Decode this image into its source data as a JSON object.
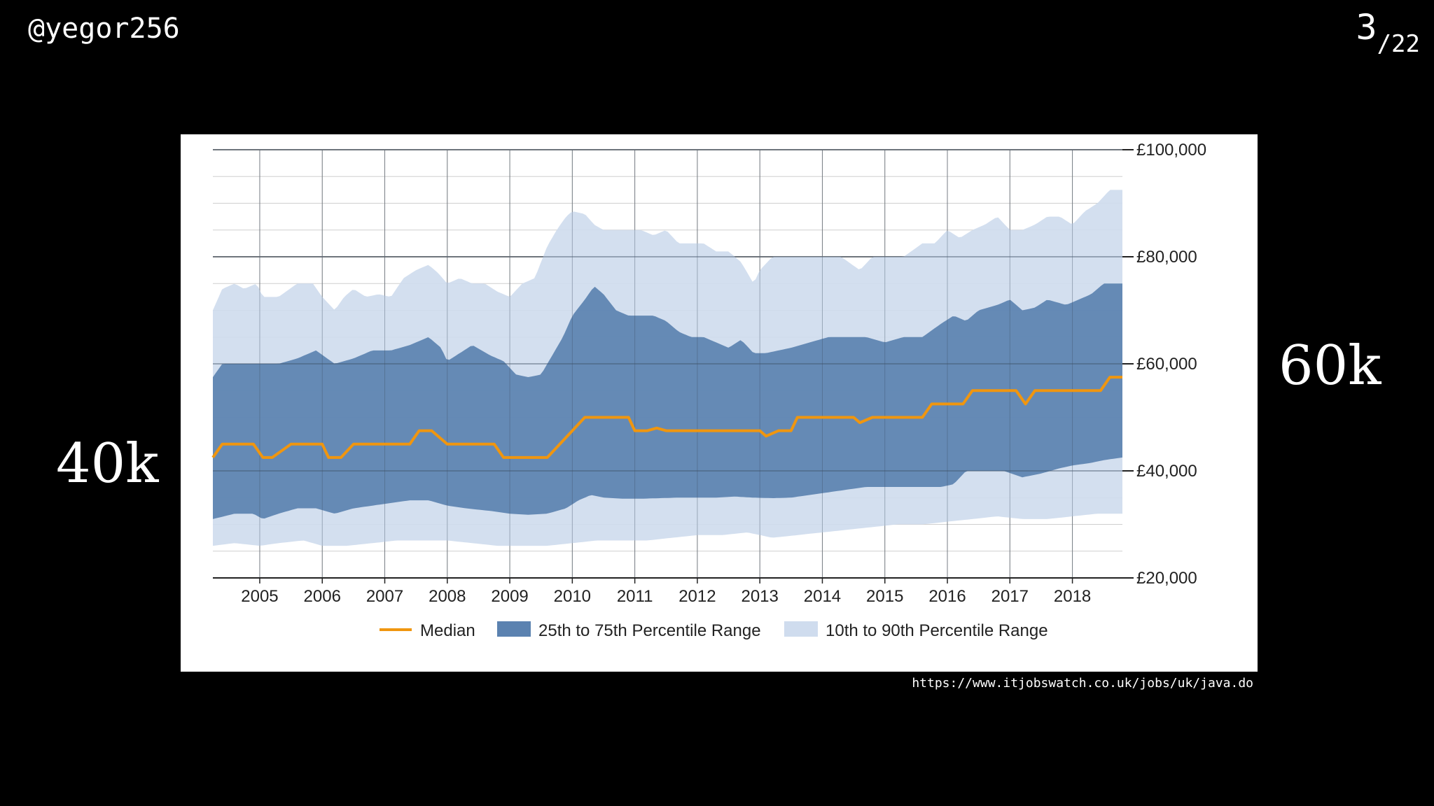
{
  "slide": {
    "handle": "@yegor256",
    "page_current": "3",
    "page_total": "/22",
    "left_label": "40k",
    "right_label": "60k",
    "source_url": "https://www.itjobswatch.co.uk/jobs/uk/java.do"
  },
  "chart_data": {
    "type": "area",
    "title": "",
    "xlabel": "",
    "ylabel": "",
    "xlim": [
      2004.25,
      2018.8
    ],
    "ylim": [
      20000,
      100000
    ],
    "x_tick_labels": [
      "2005",
      "2006",
      "2007",
      "2008",
      "2009",
      "2010",
      "2011",
      "2012",
      "2013",
      "2014",
      "2015",
      "2016",
      "2017",
      "2018"
    ],
    "y_ticks": [
      20000,
      40000,
      60000,
      80000,
      100000
    ],
    "y_tick_labels": [
      "£20,000",
      "£40,000",
      "£60,000",
      "£80,000",
      "£100,000"
    ],
    "y_axis_position": "right",
    "grid": true,
    "legend_position": "bottom",
    "colors": {
      "median": "#f0960f",
      "p25_75": "#5b82b0",
      "p10_90": "#cfdcee"
    },
    "legend": [
      "Median",
      "25th to 75th Percentile Range",
      "10th to 90th Percentile Range"
    ],
    "series": [
      {
        "name": "Median",
        "x": [
          2004.25,
          2004.4,
          2004.7,
          2004.9,
          2005.05,
          2005.2,
          2005.5,
          2005.8,
          2006.0,
          2006.1,
          2006.3,
          2006.5,
          2006.8,
          2007.1,
          2007.4,
          2007.55,
          2007.75,
          2008.0,
          2008.3,
          2008.6,
          2008.75,
          2008.9,
          2009.2,
          2009.4,
          2009.6,
          2009.8,
          2010.0,
          2010.2,
          2010.5,
          2010.9,
          2011.0,
          2011.2,
          2011.35,
          2011.5,
          2011.8,
          2012.1,
          2012.4,
          2012.7,
          2013.0,
          2013.1,
          2013.3,
          2013.5,
          2013.6,
          2013.9,
          2014.2,
          2014.5,
          2014.6,
          2014.8,
          2015.1,
          2015.4,
          2015.6,
          2015.75,
          2016.0,
          2016.25,
          2016.4,
          2016.7,
          2017.0,
          2017.1,
          2017.25,
          2017.4,
          2017.7,
          2018.0,
          2018.3,
          2018.45,
          2018.6,
          2018.8
        ],
        "values": [
          42500,
          45000,
          45000,
          45000,
          42500,
          42500,
          45000,
          45000,
          45000,
          42500,
          42500,
          45000,
          45000,
          45000,
          45000,
          47500,
          47500,
          45000,
          45000,
          45000,
          45000,
          42500,
          42500,
          42500,
          42500,
          45000,
          47500,
          50000,
          50000,
          50000,
          47500,
          47500,
          48000,
          47500,
          47500,
          47500,
          47500,
          47500,
          47500,
          46500,
          47500,
          47500,
          50000,
          50000,
          50000,
          50000,
          49000,
          50000,
          50000,
          50000,
          50000,
          52500,
          52500,
          52500,
          55000,
          55000,
          55000,
          55000,
          52500,
          55000,
          55000,
          55000,
          55000,
          55000,
          57500,
          57500
        ]
      },
      {
        "name": "25th Percentile",
        "x": [
          2004.25,
          2004.6,
          2004.9,
          2005.05,
          2005.3,
          2005.6,
          2005.9,
          2006.2,
          2006.5,
          2006.8,
          2007.1,
          2007.4,
          2007.7,
          2008.0,
          2008.3,
          2008.7,
          2009.0,
          2009.3,
          2009.6,
          2009.9,
          2010.1,
          2010.3,
          2010.5,
          2010.8,
          2011.1,
          2011.4,
          2011.7,
          2012.0,
          2012.3,
          2012.6,
          2012.9,
          2013.2,
          2013.5,
          2013.8,
          2014.1,
          2014.4,
          2014.7,
          2015.0,
          2015.3,
          2015.6,
          2015.9,
          2016.1,
          2016.3,
          2016.6,
          2016.9,
          2017.2,
          2017.5,
          2017.8,
          2018.0,
          2018.3,
          2018.5,
          2018.8
        ],
        "values": [
          31000,
          32000,
          32000,
          31000,
          32000,
          33000,
          33000,
          32000,
          33000,
          33500,
          34000,
          34500,
          34500,
          33500,
          33000,
          32500,
          32000,
          31800,
          32000,
          33000,
          34500,
          35500,
          35000,
          34800,
          34800,
          34900,
          35000,
          35000,
          35000,
          35200,
          35000,
          34900,
          35000,
          35500,
          36000,
          36500,
          37000,
          37000,
          37000,
          37000,
          37000,
          37500,
          40000,
          40000,
          40000,
          38800,
          39500,
          40500,
          41000,
          41500,
          42000,
          42500
        ]
      },
      {
        "name": "75th Percentile",
        "x": [
          2004.25,
          2004.4,
          2004.6,
          2005.0,
          2005.3,
          2005.6,
          2005.9,
          2006.2,
          2006.5,
          2006.8,
          2007.1,
          2007.4,
          2007.7,
          2007.9,
          2008.0,
          2008.2,
          2008.4,
          2008.7,
          2008.9,
          2009.1,
          2009.3,
          2009.5,
          2009.7,
          2009.85,
          2010.0,
          2010.2,
          2010.35,
          2010.5,
          2010.7,
          2010.9,
          2011.1,
          2011.3,
          2011.5,
          2011.7,
          2011.9,
          2012.1,
          2012.3,
          2012.5,
          2012.7,
          2012.9,
          2013.1,
          2013.3,
          2013.5,
          2013.8,
          2014.1,
          2014.4,
          2014.7,
          2015.0,
          2015.3,
          2015.6,
          2015.9,
          2016.1,
          2016.3,
          2016.5,
          2016.8,
          2017.0,
          2017.2,
          2017.4,
          2017.6,
          2017.9,
          2018.1,
          2018.3,
          2018.5,
          2018.8
        ],
        "values": [
          57500,
          60000,
          60000,
          60000,
          60000,
          61000,
          62500,
          60000,
          61000,
          62500,
          62500,
          63500,
          65000,
          63000,
          60500,
          62000,
          63500,
          61500,
          60500,
          58000,
          57500,
          58000,
          62000,
          65000,
          69000,
          72000,
          74500,
          73000,
          70000,
          69000,
          69000,
          69000,
          68000,
          66000,
          65000,
          65000,
          64000,
          63000,
          64500,
          62000,
          62000,
          62500,
          63000,
          64000,
          65000,
          65000,
          65000,
          64000,
          65000,
          65000,
          67500,
          69000,
          68000,
          70000,
          71000,
          72000,
          70000,
          70500,
          72000,
          71000,
          72000,
          73000,
          75000,
          75000
        ]
      },
      {
        "name": "10th Percentile",
        "x": [
          2004.25,
          2004.6,
          2005.0,
          2005.3,
          2005.7,
          2006.0,
          2006.4,
          2006.8,
          2007.2,
          2007.6,
          2008.0,
          2008.4,
          2008.8,
          2009.2,
          2009.6,
          2010.0,
          2010.4,
          2010.8,
          2011.2,
          2011.6,
          2012.0,
          2012.4,
          2012.8,
          2013.2,
          2013.6,
          2014.0,
          2014.4,
          2014.8,
          2015.2,
          2015.6,
          2016.0,
          2016.4,
          2016.8,
          2017.2,
          2017.6,
          2018.0,
          2018.4,
          2018.8
        ],
        "values": [
          26000,
          26500,
          26000,
          26500,
          27000,
          26000,
          26000,
          26500,
          27000,
          27000,
          27000,
          26500,
          26000,
          26000,
          26000,
          26500,
          27000,
          27000,
          27000,
          27500,
          28000,
          28000,
          28500,
          27500,
          28000,
          28500,
          29000,
          29500,
          30000,
          30000,
          30500,
          31000,
          31500,
          31000,
          31000,
          31500,
          32000,
          32000
        ]
      },
      {
        "name": "90th Percentile",
        "x": [
          2004.25,
          2004.4,
          2004.6,
          2004.75,
          2004.95,
          2005.05,
          2005.3,
          2005.6,
          2005.85,
          2006.0,
          2006.2,
          2006.35,
          2006.5,
          2006.7,
          2006.9,
          2007.1,
          2007.3,
          2007.5,
          2007.7,
          2007.85,
          2008.0,
          2008.2,
          2008.4,
          2008.6,
          2008.8,
          2009.0,
          2009.2,
          2009.4,
          2009.6,
          2009.75,
          2009.9,
          2010.0,
          2010.2,
          2010.35,
          2010.5,
          2010.7,
          2010.9,
          2011.1,
          2011.3,
          2011.5,
          2011.7,
          2011.9,
          2012.1,
          2012.3,
          2012.5,
          2012.7,
          2012.9,
          2013.0,
          2013.2,
          2013.4,
          2013.6,
          2013.8,
          2014.0,
          2014.3,
          2014.6,
          2014.8,
          2015.0,
          2015.3,
          2015.6,
          2015.8,
          2016.0,
          2016.2,
          2016.4,
          2016.6,
          2016.8,
          2017.0,
          2017.2,
          2017.4,
          2017.6,
          2017.8,
          2018.0,
          2018.2,
          2018.4,
          2018.6,
          2018.8
        ],
        "values": [
          70000,
          74000,
          75000,
          74000,
          75000,
          72500,
          72500,
          75000,
          75000,
          72500,
          70000,
          72500,
          74000,
          72500,
          73000,
          72500,
          76000,
          77500,
          78500,
          77000,
          75000,
          76000,
          75000,
          75000,
          73500,
          72500,
          75000,
          76000,
          82000,
          85000,
          87500,
          88500,
          88000,
          86000,
          85000,
          85000,
          85000,
          85000,
          84000,
          85000,
          82500,
          82500,
          82500,
          81000,
          81000,
          79000,
          75000,
          77500,
          80000,
          80000,
          80000,
          80000,
          80000,
          80000,
          77500,
          80000,
          80000,
          80000,
          82500,
          82500,
          85000,
          83500,
          85000,
          86000,
          87500,
          85000,
          85000,
          86000,
          87500,
          87500,
          86000,
          88500,
          90000,
          92500,
          92500
        ]
      }
    ]
  }
}
